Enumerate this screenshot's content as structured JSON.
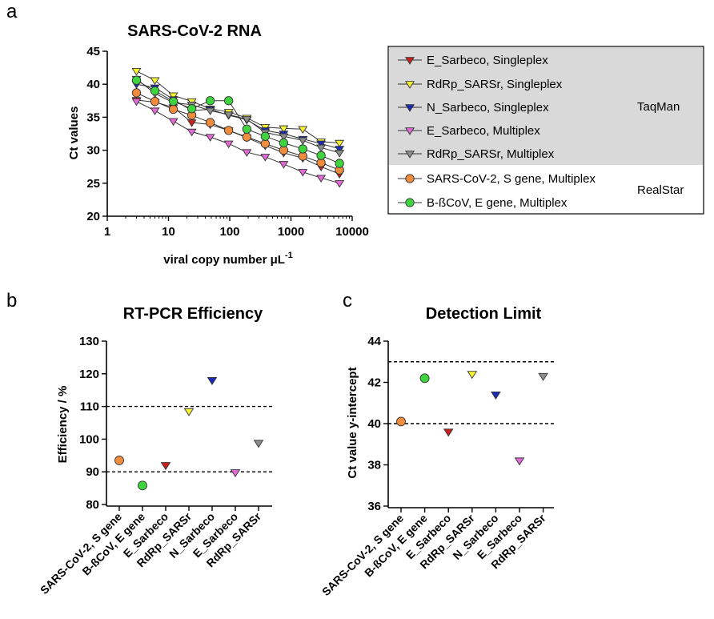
{
  "colors": {
    "E_Sarbeco_Singleplex": "#c8201e",
    "RdRp_SARSr_Singleplex": "#f7f233",
    "N_Sarbeco_Singleplex": "#1c2ab8",
    "E_Sarbeco_Multiplex": "#e36ad6",
    "RdRp_SARSr_Multiplex": "#8c8c8c",
    "SARS_CoV2_S_gene": "#f08c3e",
    "BbCoV_E_gene": "#3fd43f",
    "legend_band": "#d9d9d9"
  },
  "chart_data": [
    {
      "panel": "a",
      "type": "line",
      "title": "SARS-CoV-2 RNA",
      "xlabel": "viral copy number μL",
      "xlabel_exp": "-1",
      "ylabel": "Ct values",
      "xscale": "log",
      "xlim": [
        1,
        10000
      ],
      "ylim": [
        20,
        45
      ],
      "xticks": [
        "1",
        "10",
        "100",
        "1000",
        "10000"
      ],
      "yticks": [
        "20",
        "25",
        "30",
        "35",
        "40",
        "45"
      ],
      "x": [
        3,
        6,
        12,
        24,
        48,
        96,
        190,
        380,
        760,
        1560,
        3100,
        6200
      ],
      "series": [
        {
          "name": "E_Sarbeco, Singleplex",
          "marker": "triangle-down",
          "color": "#c8201e",
          "values": [
            37.6,
            37.3,
            36.5,
            34.2,
            33.9,
            33.0,
            31.9,
            30.7,
            29.6,
            28.8,
            27.5,
            26.4
          ]
        },
        {
          "name": "RdRp_SARSr, Singleplex",
          "marker": "triangle-down",
          "color": "#f7f233",
          "values": [
            42.0,
            40.6,
            38.3,
            37.4,
            36.3,
            35.8,
            34.9,
            33.5,
            33.3,
            33.2,
            31.3,
            31.1
          ]
        },
        {
          "name": "N_Sarbeco, Singleplex",
          "marker": "triangle-down",
          "color": "#1c2ab8",
          "values": [
            40.0,
            39.5,
            37.7,
            36.0,
            36.2,
            35.3,
            34.6,
            33.0,
            32.5,
            31.7,
            31.0,
            30.2
          ]
        },
        {
          "name": "E_Sarbeco, Multiplex",
          "marker": "triangle-down",
          "color": "#e36ad6",
          "values": [
            37.4,
            36.0,
            34.4,
            32.8,
            32.0,
            31.0,
            29.7,
            29.0,
            27.9,
            26.7,
            25.8,
            25.0
          ]
        },
        {
          "name": "RdRp_SARSr, Multiplex",
          "marker": "triangle-down",
          "color": "#8c8c8c",
          "values": [
            40.8,
            38.6,
            37.2,
            36.9,
            36.0,
            35.4,
            34.7,
            32.7,
            32.1,
            31.5,
            30.4,
            29.6
          ]
        },
        {
          "name": "SARS-CoV-2, S gene, Multiplex",
          "marker": "circle",
          "color": "#f08c3e",
          "values": [
            38.7,
            37.4,
            36.2,
            35.3,
            34.2,
            33.0,
            32.0,
            31.0,
            30.0,
            29.1,
            28.1,
            27.0
          ]
        },
        {
          "name": "B-ßCoV, E gene, Multiplex",
          "marker": "circle",
          "color": "#3fd43f",
          "values": [
            40.6,
            39.0,
            37.4,
            36.3,
            37.5,
            37.5,
            33.2,
            32.1,
            31.1,
            30.2,
            29.2,
            28.0
          ]
        }
      ],
      "legend": {
        "position": "right",
        "groups": [
          {
            "label": "TaqMan",
            "items": [
              0,
              1,
              2,
              3,
              4
            ]
          },
          {
            "label": "RealStar",
            "items": [
              5,
              6
            ]
          }
        ]
      }
    },
    {
      "panel": "b",
      "type": "scatter",
      "title": "RT-PCR Efficiency",
      "ylabel": "Efficiency / %",
      "ylim": [
        80,
        130
      ],
      "yticks": [
        "80",
        "90",
        "100",
        "110",
        "120",
        "130"
      ],
      "reference_lines": [
        90,
        110
      ],
      "categories": [
        "SARS-CoV-2, S gene",
        "B-ßCoV, E gene",
        "E_Sarbeco",
        "RdRp_SARSr",
        "N_Sarbeco",
        "E_Sarbeco",
        "RdRp_SARSr"
      ],
      "points": [
        {
          "value": 93.5,
          "marker": "circle",
          "color": "#f08c3e"
        },
        {
          "value": 85.8,
          "marker": "circle",
          "color": "#3fd43f"
        },
        {
          "value": 92.0,
          "marker": "triangle-down",
          "color": "#c8201e"
        },
        {
          "value": 108.5,
          "marker": "triangle-down",
          "color": "#f7f233"
        },
        {
          "value": 118.0,
          "marker": "triangle-down",
          "color": "#1c2ab8"
        },
        {
          "value": 89.8,
          "marker": "triangle-down",
          "color": "#e36ad6"
        },
        {
          "value": 98.8,
          "marker": "triangle-down",
          "color": "#8c8c8c"
        }
      ]
    },
    {
      "panel": "c",
      "type": "scatter",
      "title": "Detection Limit",
      "ylabel": "Ct value y-intercept",
      "ylim": [
        36,
        44
      ],
      "yticks": [
        "36",
        "38",
        "40",
        "42",
        "44"
      ],
      "reference_lines": [
        40,
        43
      ],
      "categories": [
        "SARS-CoV-2, S gene",
        "B-ßCoV, E gene",
        "E_Sarbeco",
        "RdRp_SARSr",
        "N_Sarbeco",
        "E_Sarbeco",
        "RdRp_SARSr"
      ],
      "points": [
        {
          "value": 40.1,
          "marker": "circle",
          "color": "#f08c3e"
        },
        {
          "value": 42.2,
          "marker": "circle",
          "color": "#3fd43f"
        },
        {
          "value": 39.6,
          "marker": "triangle-down",
          "color": "#c8201e"
        },
        {
          "value": 42.4,
          "marker": "triangle-down",
          "color": "#f7f233"
        },
        {
          "value": 41.4,
          "marker": "triangle-down",
          "color": "#1c2ab8"
        },
        {
          "value": 38.2,
          "marker": "triangle-down",
          "color": "#e36ad6"
        },
        {
          "value": 42.3,
          "marker": "triangle-down",
          "color": "#8c8c8c"
        }
      ]
    }
  ]
}
